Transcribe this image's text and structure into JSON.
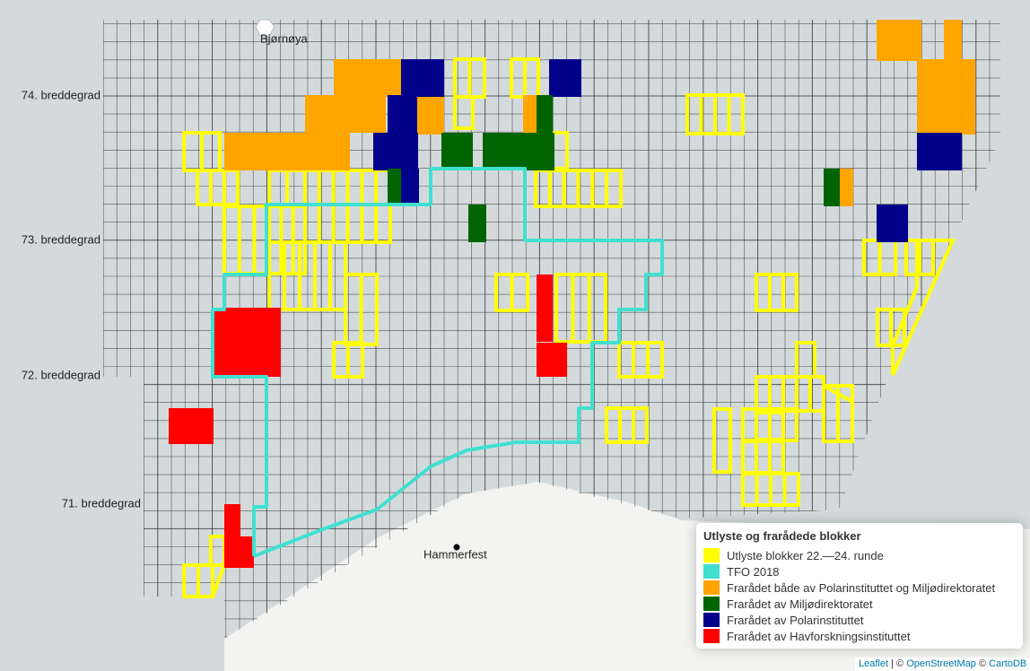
{
  "map": {
    "latitude_labels": [
      "74. breddegrad",
      "73. breddegrad",
      "72. breddegrad",
      "71. breddegrad"
    ],
    "places": [
      "Bjørnøya",
      "Hammerfest"
    ],
    "legend": {
      "title": "Utlyste og frarådede blokker",
      "items": [
        {
          "label": "Utlyste blokker 22.—24. runde",
          "color": "#ffff00"
        },
        {
          "label": "TFO 2018",
          "color": "#40e0d0"
        },
        {
          "label": "Frarådet både av Polarinstituttet og Miljødirektoratet",
          "color": "#ffa500"
        },
        {
          "label": "Frarådet av Miljødirektoratet",
          "color": "#006400"
        },
        {
          "label": "Frarådet av Polarinstituttet",
          "color": "#00008b"
        },
        {
          "label": "Frarådet av Havforskningsinstituttet",
          "color": "#ff0000"
        }
      ]
    },
    "attribution": [
      "Leaflet",
      "| ©",
      "OpenStreetMap",
      "©",
      "CartoDB"
    ]
  }
}
